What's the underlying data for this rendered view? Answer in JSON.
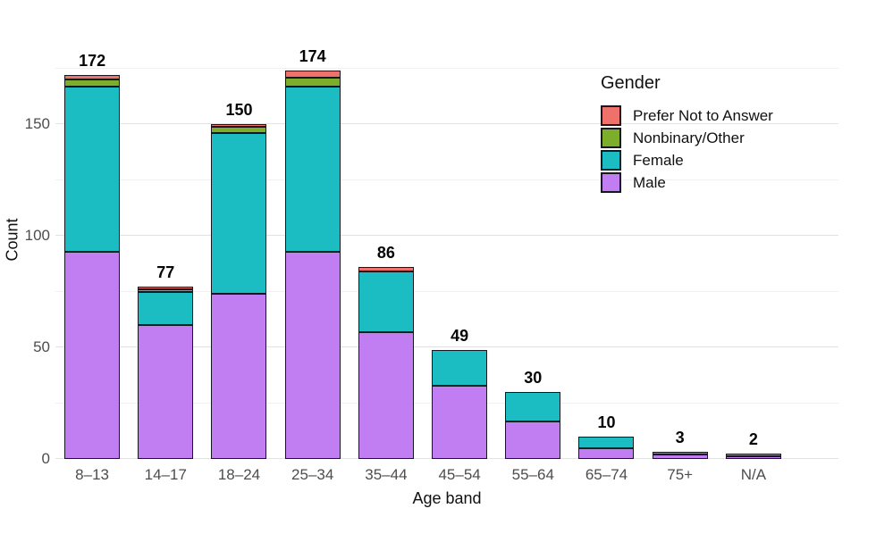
{
  "chart_data": {
    "type": "bar",
    "stacked": true,
    "xlabel": "Age band",
    "ylabel": "Count",
    "ylim": [
      0,
      175
    ],
    "yticks": [
      0,
      50,
      100,
      150
    ],
    "yticks_minor": [
      25,
      75,
      125,
      175
    ],
    "grid": "horizontal",
    "categories": [
      "8–13",
      "14–17",
      "18–24",
      "25–34",
      "35–44",
      "45–54",
      "55–64",
      "65–74",
      "75+",
      "N/A"
    ],
    "totals": [
      172,
      77,
      150,
      174,
      86,
      49,
      30,
      10,
      3,
      2
    ],
    "series": [
      {
        "name": "Male",
        "color": "#c07ef2",
        "values": [
          93,
          60,
          74,
          93,
          57,
          33,
          17,
          5,
          2,
          1
        ]
      },
      {
        "name": "Female",
        "color": "#1bbcc2",
        "values": [
          74,
          15,
          72,
          74,
          27,
          16,
          13,
          5,
          1,
          1
        ]
      },
      {
        "name": "Nonbinary/Other",
        "color": "#7cad2b",
        "values": [
          3,
          1,
          3,
          4,
          0,
          0,
          0,
          0,
          0,
          0
        ]
      },
      {
        "name": "Prefer Not to Answer",
        "color": "#ee716c",
        "values": [
          2,
          1,
          1,
          3,
          2,
          0,
          0,
          0,
          0,
          0
        ]
      }
    ],
    "legend": {
      "title": "Gender",
      "position": "top-right",
      "order": [
        "Prefer Not to Answer",
        "Nonbinary/Other",
        "Female",
        "Male"
      ]
    }
  },
  "colors": {
    "background": "#ffffff",
    "bar_border": "#17171f",
    "grid_major": "#e2e2e2",
    "grid_minor": "#f0f0f0",
    "tick_text": "#4d4d4d",
    "axis_title_text": "#111111",
    "total_label_text": "#060606"
  }
}
